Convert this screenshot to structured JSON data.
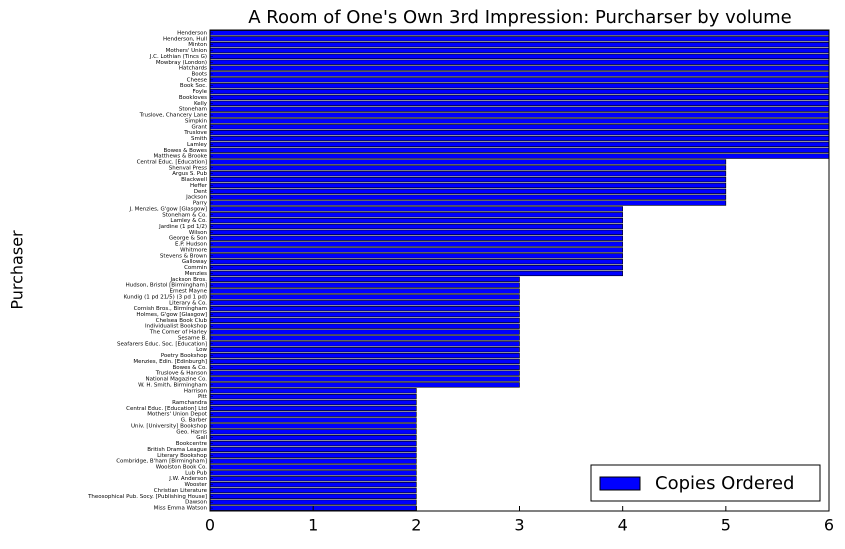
{
  "chart_data": {
    "type": "barh",
    "title": "A Room of One's Own 3rd Impression: Purcharser by volume",
    "ylabel": "Purchaser",
    "categories": [
      "Henderson",
      "Henderson, Hull",
      "Minton",
      "Mothers' Union",
      "J.C. Lothian (Tincs G)",
      "Mowbray (London)",
      "Hatchards",
      "Boots",
      "Cheese",
      "Book Soc.",
      "Foyle",
      "Bookloves",
      "Kelly",
      "Stoneham",
      "Truslove, Chancery Lane",
      "Simpkin",
      "Grant",
      "Truslove",
      "Smith",
      "Lamley",
      "Bowes & Bowes",
      "Matthews & Brooke",
      "Central Educ. [Education]",
      "Shenval Press",
      "Argus S. Pub",
      "Blackwell",
      "Heffer",
      "Dent",
      "Jackson",
      "Parry",
      "J. Menzies, G'gow [Glasgow]",
      "Stoneham & Co.",
      "Lamley & Co.",
      "Jardine (1 pd 1/2)",
      "Wilson",
      "George & Son",
      "E.P. Hudson",
      "Whitmore",
      "Stevens & Brown",
      "Galloway",
      "Commin",
      "Menzies",
      "Jackson Bros.",
      "Hudson, Bristol [Birmingham]",
      "Ernest Mayne",
      "Kundig (1 pd 21/5) (3 pd 1 pd)",
      "Literary & Co.",
      "Cornish Bros., Birmingham",
      "Holmes, G'gow [Glasgow]",
      "Chelsea Book Club",
      "Individualist Bookshop",
      "The Corner of Harley",
      "Sesame B.",
      "Seafarers Educ. Soc. [Education]",
      "Low",
      "Poetry Bookshop",
      "Menzies, Edin. [Edinburgh]",
      "Bowes & Co.",
      "Truslove & Hanson",
      "National Magazine Co.",
      "W. H. Smith, Birmingham",
      "Harrison",
      "Pitt",
      "Ramchandra",
      "Central Educ. [Education] Ltd",
      "Mothers' Union Depot",
      "G. Barber",
      "Univ. [University] Bookshop",
      "Geo. Harris",
      "Gall",
      "Bookcentre",
      "British Drama League",
      "Literary Bookshop",
      "Combridge, B'ham [Birmingham]",
      "Woolston Book Co.",
      "Lub Pub",
      "J.W. Anderson",
      "Wooster",
      "Christian Literature",
      "Theosophical Pub. Socy. [Publishing House]",
      "Dawson",
      "Miss Emma Watson"
    ],
    "values": [
      6,
      6,
      6,
      6,
      6,
      6,
      6,
      6,
      6,
      6,
      6,
      6,
      6,
      6,
      6,
      6,
      6,
      6,
      6,
      6,
      6,
      6,
      5,
      5,
      5,
      5,
      5,
      5,
      5,
      5,
      4,
      4,
      4,
      4,
      4,
      4,
      4,
      4,
      4,
      4,
      4,
      4,
      3,
      3,
      3,
      3,
      3,
      3,
      3,
      3,
      3,
      3,
      3,
      3,
      3,
      3,
      3,
      3,
      3,
      3,
      3,
      2,
      2,
      2,
      2,
      2,
      2,
      2,
      2,
      2,
      2,
      2,
      2,
      2,
      2,
      2,
      2,
      2,
      2,
      2,
      2,
      2
    ],
    "color": "#0000ff",
    "legend": "Copies Ordered",
    "legend_position": "lower right",
    "xlim": [
      0,
      6
    ],
    "xticks": [
      0,
      1,
      2,
      3,
      4,
      5,
      6
    ]
  }
}
